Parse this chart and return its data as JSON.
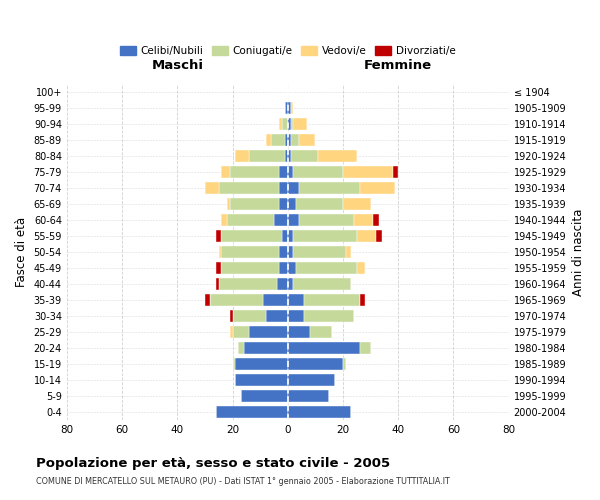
{
  "age_groups": [
    "100+",
    "95-99",
    "90-94",
    "85-89",
    "80-84",
    "75-79",
    "70-74",
    "65-69",
    "60-64",
    "55-59",
    "50-54",
    "45-49",
    "40-44",
    "35-39",
    "30-34",
    "25-29",
    "20-24",
    "15-19",
    "10-14",
    "5-9",
    "0-4"
  ],
  "birth_years": [
    "≤ 1904",
    "1905-1909",
    "1910-1914",
    "1915-1919",
    "1920-1924",
    "1925-1929",
    "1930-1934",
    "1935-1939",
    "1940-1944",
    "1945-1949",
    "1950-1954",
    "1955-1959",
    "1960-1964",
    "1965-1969",
    "1970-1974",
    "1975-1979",
    "1980-1984",
    "1985-1989",
    "1990-1994",
    "1995-1999",
    "2000-2004"
  ],
  "males": {
    "celibi": [
      0,
      1,
      0,
      1,
      1,
      3,
      3,
      3,
      5,
      2,
      3,
      3,
      4,
      9,
      8,
      14,
      16,
      19,
      19,
      17,
      26
    ],
    "coniugati": [
      0,
      0,
      2,
      5,
      13,
      18,
      22,
      18,
      17,
      22,
      21,
      21,
      21,
      19,
      12,
      6,
      2,
      1,
      0,
      0,
      0
    ],
    "vedovi": [
      0,
      0,
      1,
      2,
      5,
      3,
      5,
      1,
      2,
      0,
      1,
      0,
      0,
      0,
      0,
      1,
      0,
      0,
      0,
      0,
      0
    ],
    "divorziati": [
      0,
      0,
      0,
      0,
      0,
      0,
      0,
      0,
      0,
      2,
      0,
      2,
      1,
      2,
      1,
      0,
      0,
      0,
      0,
      0,
      0
    ]
  },
  "females": {
    "nubili": [
      0,
      1,
      1,
      1,
      1,
      2,
      4,
      3,
      4,
      2,
      2,
      3,
      2,
      6,
      6,
      8,
      26,
      20,
      17,
      15,
      23
    ],
    "coniugate": [
      0,
      0,
      1,
      3,
      10,
      18,
      22,
      17,
      20,
      23,
      19,
      22,
      21,
      20,
      18,
      8,
      4,
      1,
      0,
      0,
      0
    ],
    "vedove": [
      0,
      1,
      5,
      6,
      14,
      18,
      13,
      10,
      7,
      7,
      2,
      3,
      0,
      0,
      0,
      0,
      0,
      0,
      0,
      0,
      0
    ],
    "divorziate": [
      0,
      0,
      0,
      0,
      0,
      2,
      0,
      0,
      2,
      2,
      0,
      0,
      0,
      2,
      0,
      0,
      0,
      0,
      0,
      0,
      0
    ]
  },
  "color_celibi": "#4472c4",
  "color_coniugati": "#c5d99b",
  "color_vedovi": "#ffd57f",
  "color_divorziati": "#c00000",
  "xlim": 80,
  "title": "Popolazione per età, sesso e stato civile - 2005",
  "subtitle": "COMUNE DI MERCATELLO SUL METAURO (PU) - Dati ISTAT 1° gennaio 2005 - Elaborazione TUTTITALIA.IT",
  "ylabel": "Fasce di età",
  "ylabel_right": "Anni di nascita",
  "label_maschi": "Maschi",
  "label_femmine": "Femmine",
  "legend_celibi": "Celibi/Nubili",
  "legend_coniugati": "Coniugati/e",
  "legend_vedovi": "Vedovi/e",
  "legend_divorziati": "Divorziati/e"
}
